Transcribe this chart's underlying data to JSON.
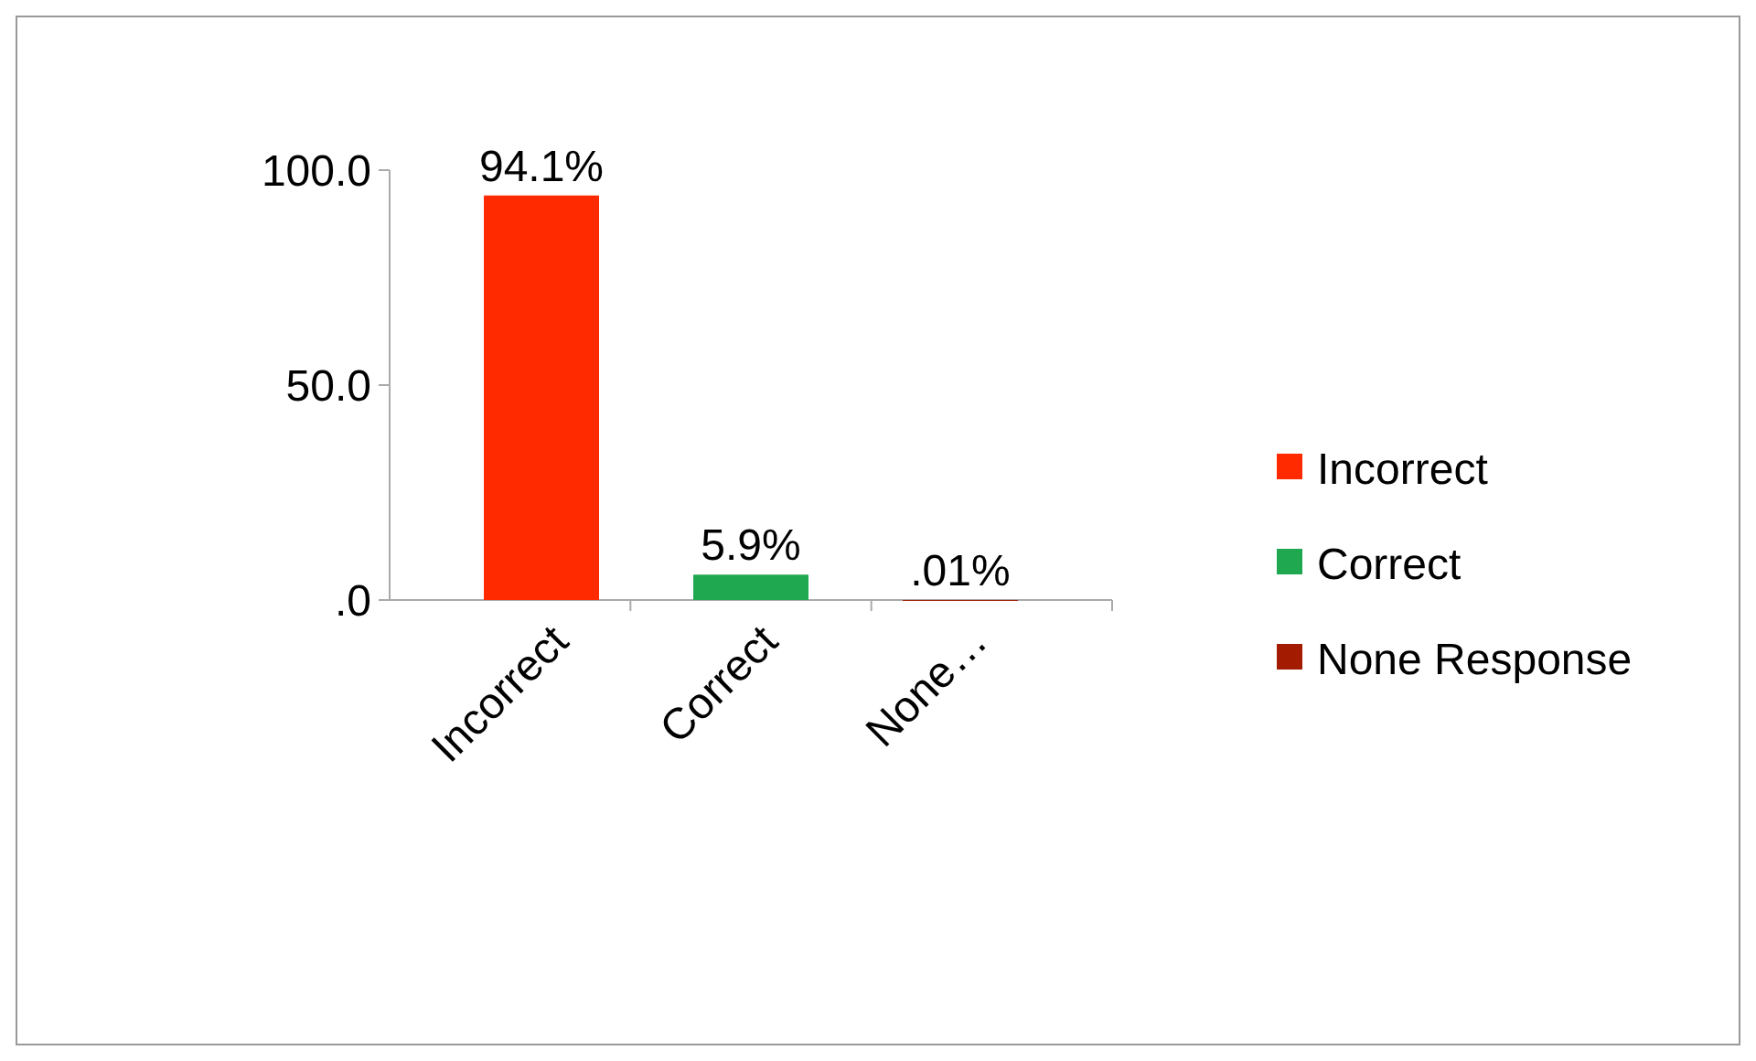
{
  "chart_data": {
    "type": "bar",
    "stacked": true,
    "categories": [
      "Incorrect",
      "Correct",
      "None…"
    ],
    "series": [
      {
        "name": "Incorrect",
        "color": "#ff2a00",
        "values": [
          94.1,
          null,
          null
        ],
        "value_labels": [
          "94.1%",
          null,
          null
        ]
      },
      {
        "name": "Correct",
        "color": "#1fa84f",
        "values": [
          null,
          5.9,
          null
        ],
        "value_labels": [
          null,
          "5.9%",
          null
        ]
      },
      {
        "name": "None Response",
        "color": "#a31b00",
        "values": [
          null,
          null,
          0.01
        ],
        "value_labels": [
          null,
          null,
          ".01%"
        ]
      }
    ],
    "ylim": [
      0,
      100
    ],
    "yticks": [
      {
        "value": 0,
        "label": ".0"
      },
      {
        "value": 50,
        "label": "50.0"
      },
      {
        "value": 100,
        "label": "100.0"
      }
    ],
    "legend": "right"
  }
}
